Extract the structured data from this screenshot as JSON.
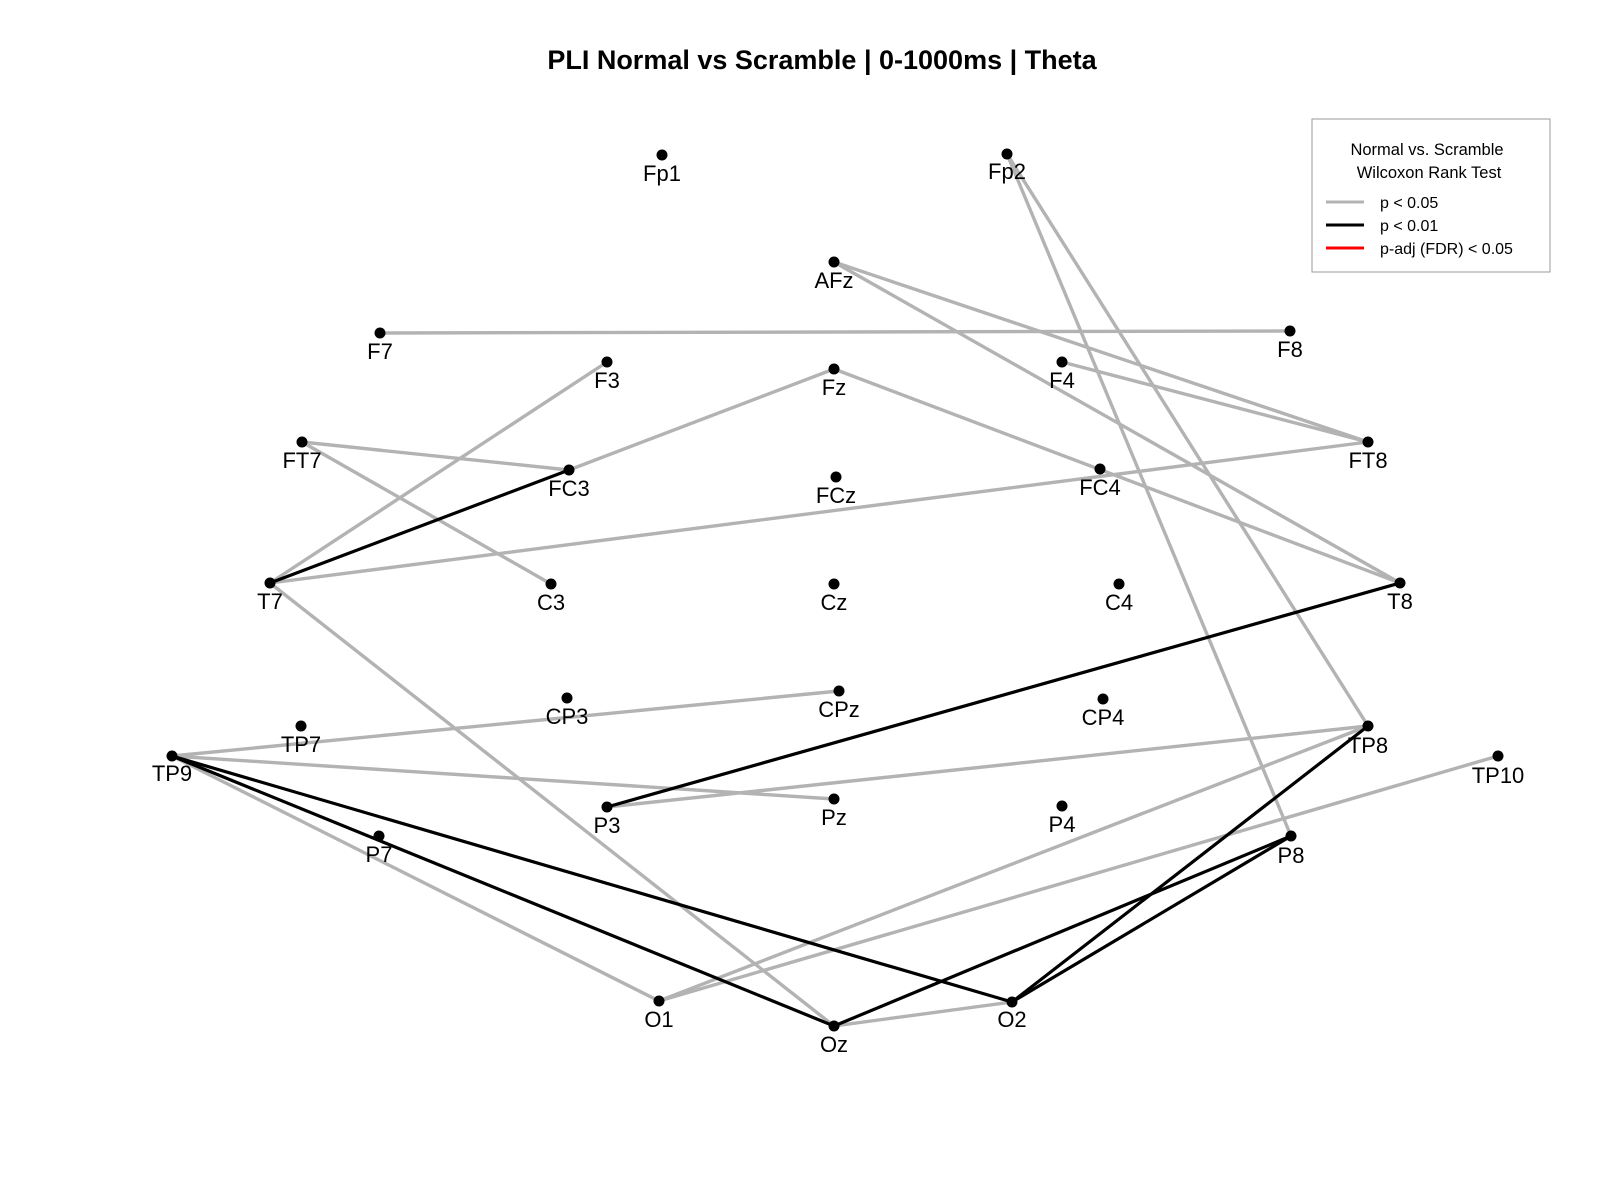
{
  "title": "PLI Normal vs Scramble | 0-1000ms |  Theta",
  "legend": {
    "title_line1": "Normal vs. Scramble",
    "title_line2": "Wilcoxon Rank Test",
    "items": [
      {
        "label": "p < 0.05",
        "level": "p05",
        "color": "#b3b3b3"
      },
      {
        "label": "p < 0.01",
        "level": "p01",
        "color": "#000000"
      },
      {
        "label": "p-adj (FDR) < 0.05",
        "level": "fdr",
        "color": "#ff0000"
      }
    ]
  },
  "electrodes": [
    "Fp1",
    "Fp2",
    "AFz",
    "F7",
    "F8",
    "F3",
    "Fz",
    "F4",
    "FT7",
    "FC3",
    "FCz",
    "FC4",
    "FT8",
    "T7",
    "C3",
    "Cz",
    "C4",
    "T8",
    "CP3",
    "CPz",
    "CP4",
    "TP7",
    "TP8",
    "TP9",
    "TP10",
    "P3",
    "Pz",
    "P4",
    "P7",
    "P8",
    "O1",
    "Oz",
    "O2"
  ],
  "connections": [
    {
      "from": "F7",
      "to": "F8",
      "level": "p05"
    },
    {
      "from": "Fp2",
      "to": "TP8",
      "level": "p05"
    },
    {
      "from": "Fp2",
      "to": "P8",
      "level": "p05"
    },
    {
      "from": "AFz",
      "to": "FT8",
      "level": "p05"
    },
    {
      "from": "AFz",
      "to": "T8",
      "level": "p05"
    },
    {
      "from": "F4",
      "to": "FT8",
      "level": "p05"
    },
    {
      "from": "Fz",
      "to": "FC3",
      "level": "p05"
    },
    {
      "from": "Fz",
      "to": "T8",
      "level": "p05"
    },
    {
      "from": "F3",
      "to": "T7",
      "level": "p05"
    },
    {
      "from": "FT7",
      "to": "FC3",
      "level": "p05"
    },
    {
      "from": "FT7",
      "to": "C3",
      "level": "p05"
    },
    {
      "from": "T7",
      "to": "FT8",
      "level": "p05"
    },
    {
      "from": "T7",
      "to": "Oz",
      "level": "p05"
    },
    {
      "from": "TP9",
      "to": "CPz",
      "level": "p05"
    },
    {
      "from": "TP9",
      "to": "Pz",
      "level": "p05"
    },
    {
      "from": "TP9",
      "to": "O1",
      "level": "p05"
    },
    {
      "from": "P3",
      "to": "TP8",
      "level": "p05"
    },
    {
      "from": "O1",
      "to": "TP8",
      "level": "p05"
    },
    {
      "from": "O1",
      "to": "TP10",
      "level": "p05"
    },
    {
      "from": "Oz",
      "to": "O2",
      "level": "p05"
    },
    {
      "from": "T7",
      "to": "FC3",
      "level": "p01"
    },
    {
      "from": "P3",
      "to": "T8",
      "level": "p01"
    },
    {
      "from": "TP9",
      "to": "Oz",
      "level": "p01"
    },
    {
      "from": "TP9",
      "to": "O2",
      "level": "p01"
    },
    {
      "from": "Oz",
      "to": "P8",
      "level": "p01"
    },
    {
      "from": "O2",
      "to": "P8",
      "level": "p01"
    },
    {
      "from": "O2",
      "to": "TP8",
      "level": "p01"
    }
  ]
}
